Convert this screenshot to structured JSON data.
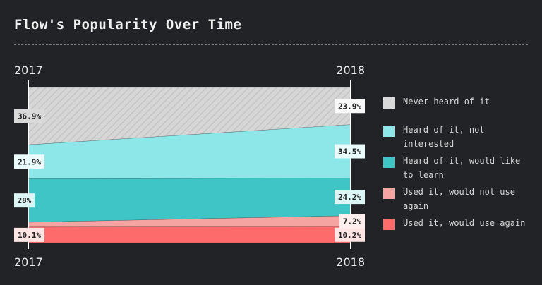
{
  "title": "Flow's Popularity Over Time",
  "chart_data": {
    "type": "area",
    "title": "Flow's Popularity Over Time",
    "x": [
      "2017",
      "2018"
    ],
    "series": [
      {
        "name": "Used it, would use again",
        "values": [
          10.1,
          10.2
        ],
        "labels": [
          "10.1%",
          "10.2%"
        ],
        "color": "#fe6b6b"
      },
      {
        "name": "Used it, would not use again",
        "values": [
          3.1,
          7.2
        ],
        "labels": [
          "",
          "7.2%"
        ],
        "color": "#f6a4a2"
      },
      {
        "name": "Heard of it, would like to learn",
        "values": [
          28,
          24.2
        ],
        "labels": [
          "28%",
          "24.2%"
        ],
        "color": "#3fc5c6"
      },
      {
        "name": "Heard of it, not interested",
        "values": [
          21.9,
          34.5
        ],
        "labels": [
          "21.9%",
          "34.5%"
        ],
        "color": "#8de7e8"
      },
      {
        "name": "Never heard of it",
        "values": [
          36.9,
          23.9
        ],
        "labels": [
          "36.9%",
          "23.9%"
        ],
        "color": "#d8d8d8",
        "pattern": "hatch"
      }
    ],
    "stacked": true,
    "legend_position": "right"
  },
  "legend": [
    {
      "label": "Never heard of it",
      "color": "#d8d8d8"
    },
    {
      "label": "Heard of it, not interested",
      "color": "#8de7e8"
    },
    {
      "label": "Heard of it, would like to learn",
      "color": "#3fc5c6"
    },
    {
      "label": "Used it, would not use again",
      "color": "#f6a4a2"
    },
    {
      "label": "Used it, would use again",
      "color": "#fe6b6b"
    }
  ]
}
